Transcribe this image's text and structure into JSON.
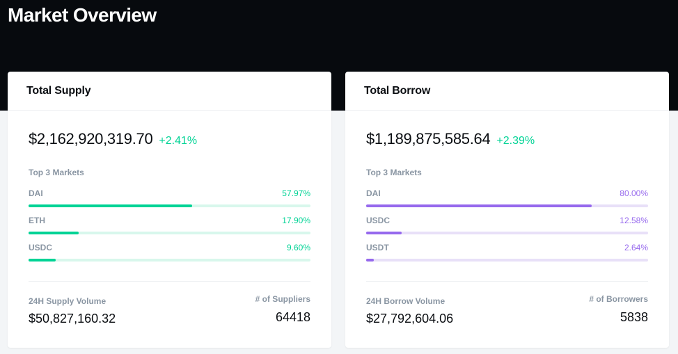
{
  "page": {
    "title": "Market Overview"
  },
  "colors": {
    "supply_accent": "#00d395",
    "borrow_accent": "#9669ed",
    "hero_background": "#070a0e"
  },
  "supply": {
    "title": "Total Supply",
    "total": "$2,162,920,319.70",
    "change": "+2.41%",
    "top_markets_label": "Top 3 Markets",
    "markets": [
      {
        "name": "DAI",
        "pct_label": "57.97%",
        "fraction": 0.5797
      },
      {
        "name": "ETH",
        "pct_label": "17.90%",
        "fraction": 0.179
      },
      {
        "name": "USDC",
        "pct_label": "9.60%",
        "fraction": 0.096
      }
    ],
    "volume_label": "24H Supply Volume",
    "volume_value": "$50,827,160.32",
    "count_label": "# of Suppliers",
    "count_value": "64418"
  },
  "borrow": {
    "title": "Total Borrow",
    "total": "$1,189,875,585.64",
    "change": "+2.39%",
    "top_markets_label": "Top 3 Markets",
    "markets": [
      {
        "name": "DAI",
        "pct_label": "80.00%",
        "fraction": 0.8
      },
      {
        "name": "USDC",
        "pct_label": "12.58%",
        "fraction": 0.1258
      },
      {
        "name": "USDT",
        "pct_label": "2.64%",
        "fraction": 0.0264
      }
    ],
    "volume_label": "24H Borrow Volume",
    "volume_value": "$27,792,604.06",
    "count_label": "# of Borrowers",
    "count_value": "5838"
  }
}
